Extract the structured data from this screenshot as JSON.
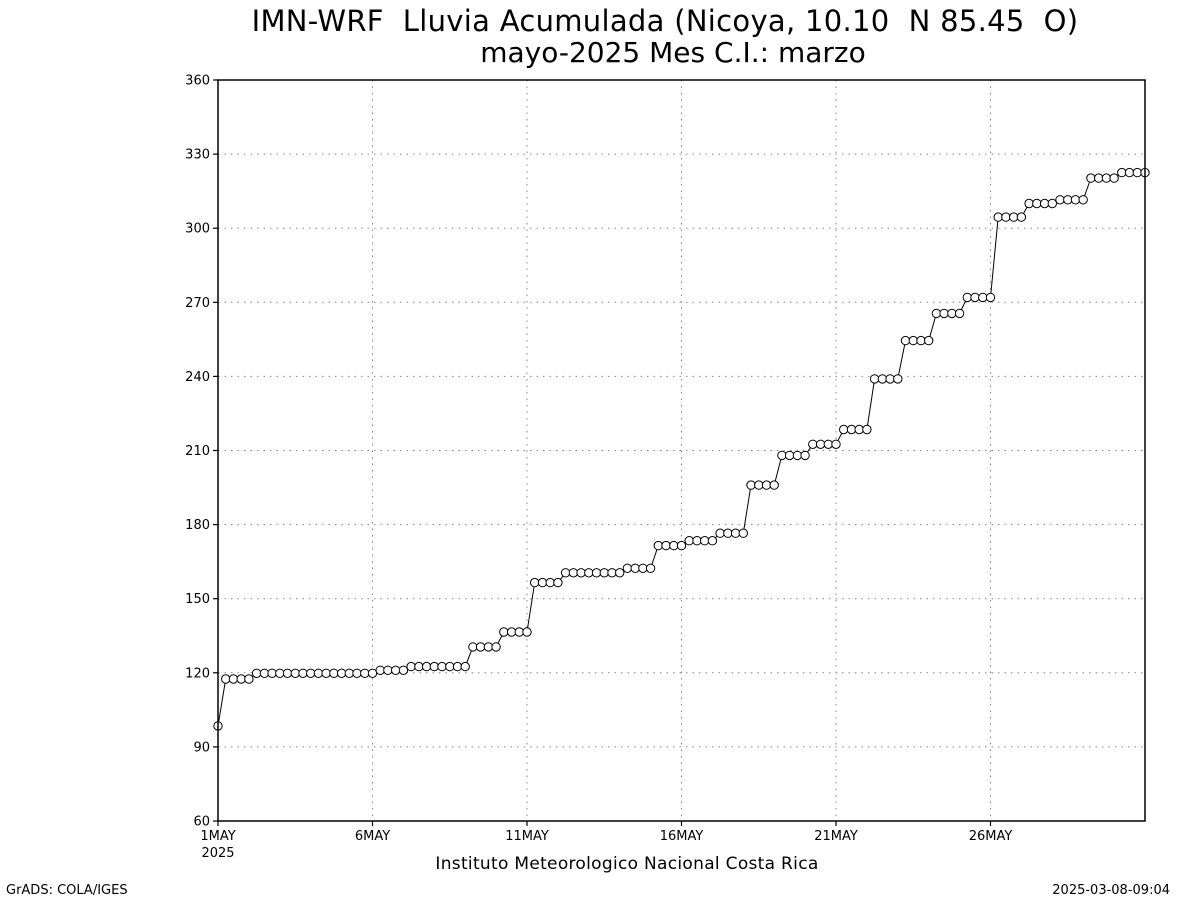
{
  "chart_data": {
    "type": "line",
    "title": "IMN-WRF  Lluvia Acumulada (Nicoya, 10.10  N 85.45  O)",
    "subtitle": "mayo-2025 Mes C.I.: marzo",
    "xlabel": "Instituto Meteorologico Nacional Costa Rica",
    "ylabel": "",
    "ylim": [
      60,
      360
    ],
    "yticks": [
      60,
      90,
      120,
      150,
      180,
      210,
      240,
      270,
      300,
      330,
      360
    ],
    "xlim": [
      "2025-05-01",
      "2025-05-31"
    ],
    "xticks": [
      {
        "date": "2025-05-01",
        "label": "1MAY",
        "sublabel": "2025"
      },
      {
        "date": "2025-05-06",
        "label": "6MAY",
        "sublabel": ""
      },
      {
        "date": "2025-05-11",
        "label": "11MAY",
        "sublabel": ""
      },
      {
        "date": "2025-05-16",
        "label": "16MAY",
        "sublabel": ""
      },
      {
        "date": "2025-05-21",
        "label": "21MAY",
        "sublabel": ""
      },
      {
        "date": "2025-05-26",
        "label": "26MAY",
        "sublabel": ""
      }
    ],
    "grid": true,
    "marker": "open-circle",
    "series": [
      {
        "name": "",
        "x": [
          "2025-05-01 00:00",
          "2025-05-01 06:00",
          "2025-05-01 12:00",
          "2025-05-01 18:00",
          "2025-05-02 00:00",
          "2025-05-02 06:00",
          "2025-05-02 12:00",
          "2025-05-02 18:00",
          "2025-05-03 00:00",
          "2025-05-03 06:00",
          "2025-05-03 12:00",
          "2025-05-03 18:00",
          "2025-05-04 00:00",
          "2025-05-04 06:00",
          "2025-05-04 12:00",
          "2025-05-04 18:00",
          "2025-05-05 00:00",
          "2025-05-05 06:00",
          "2025-05-05 12:00",
          "2025-05-05 18:00",
          "2025-05-06 00:00",
          "2025-05-06 06:00",
          "2025-05-06 12:00",
          "2025-05-06 18:00",
          "2025-05-07 00:00",
          "2025-05-07 06:00",
          "2025-05-07 12:00",
          "2025-05-07 18:00",
          "2025-05-08 00:00",
          "2025-05-08 06:00",
          "2025-05-08 12:00",
          "2025-05-08 18:00",
          "2025-05-09 00:00",
          "2025-05-09 06:00",
          "2025-05-09 12:00",
          "2025-05-09 18:00",
          "2025-05-10 00:00",
          "2025-05-10 06:00",
          "2025-05-10 12:00",
          "2025-05-10 18:00",
          "2025-05-11 00:00",
          "2025-05-11 06:00",
          "2025-05-11 12:00",
          "2025-05-11 18:00",
          "2025-05-12 00:00",
          "2025-05-12 06:00",
          "2025-05-12 12:00",
          "2025-05-12 18:00",
          "2025-05-13 00:00",
          "2025-05-13 06:00",
          "2025-05-13 12:00",
          "2025-05-13 18:00",
          "2025-05-14 00:00",
          "2025-05-14 06:00",
          "2025-05-14 12:00",
          "2025-05-14 18:00",
          "2025-05-15 00:00",
          "2025-05-15 06:00",
          "2025-05-15 12:00",
          "2025-05-15 18:00",
          "2025-05-16 00:00",
          "2025-05-16 06:00",
          "2025-05-16 12:00",
          "2025-05-16 18:00",
          "2025-05-17 00:00",
          "2025-05-17 06:00",
          "2025-05-17 12:00",
          "2025-05-17 18:00",
          "2025-05-18 00:00",
          "2025-05-18 06:00",
          "2025-05-18 12:00",
          "2025-05-18 18:00",
          "2025-05-19 00:00",
          "2025-05-19 06:00",
          "2025-05-19 12:00",
          "2025-05-19 18:00",
          "2025-05-20 00:00",
          "2025-05-20 06:00",
          "2025-05-20 12:00",
          "2025-05-20 18:00",
          "2025-05-21 00:00",
          "2025-05-21 06:00",
          "2025-05-21 12:00",
          "2025-05-21 18:00",
          "2025-05-22 00:00",
          "2025-05-22 06:00",
          "2025-05-22 12:00",
          "2025-05-22 18:00",
          "2025-05-23 00:00",
          "2025-05-23 06:00",
          "2025-05-23 12:00",
          "2025-05-23 18:00",
          "2025-05-24 00:00",
          "2025-05-24 06:00",
          "2025-05-24 12:00",
          "2025-05-24 18:00",
          "2025-05-25 00:00",
          "2025-05-25 06:00",
          "2025-05-25 12:00",
          "2025-05-25 18:00",
          "2025-05-26 00:00",
          "2025-05-26 06:00",
          "2025-05-26 12:00",
          "2025-05-26 18:00",
          "2025-05-27 00:00",
          "2025-05-27 06:00",
          "2025-05-27 12:00",
          "2025-05-27 18:00",
          "2025-05-28 00:00",
          "2025-05-28 06:00",
          "2025-05-28 12:00",
          "2025-05-28 18:00",
          "2025-05-29 00:00",
          "2025-05-29 06:00",
          "2025-05-29 12:00",
          "2025-05-29 18:00",
          "2025-05-30 00:00",
          "2025-05-30 06:00",
          "2025-05-30 12:00",
          "2025-05-30 18:00",
          "2025-05-31 00:00"
        ],
        "values": [
          98.5,
          117.5,
          117.5,
          117.5,
          117.5,
          119.8,
          119.8,
          119.8,
          119.8,
          119.8,
          119.8,
          119.8,
          119.8,
          119.8,
          119.8,
          119.8,
          119.8,
          119.8,
          119.8,
          119.8,
          119.8,
          121,
          121,
          121,
          121,
          122.5,
          122.5,
          122.5,
          122.5,
          122.5,
          122.5,
          122.5,
          122.5,
          130.5,
          130.5,
          130.5,
          130.5,
          136.5,
          136.5,
          136.5,
          136.5,
          156.5,
          156.5,
          156.5,
          156.5,
          160.5,
          160.5,
          160.5,
          160.5,
          160.5,
          160.5,
          160.5,
          160.5,
          162.3,
          162.3,
          162.3,
          162.3,
          171.5,
          171.5,
          171.5,
          171.5,
          173.5,
          173.5,
          173.5,
          173.5,
          176.5,
          176.5,
          176.5,
          176.5,
          196,
          196,
          196,
          196,
          208,
          208,
          208,
          208,
          212.5,
          212.5,
          212.5,
          212.5,
          218.5,
          218.5,
          218.5,
          218.5,
          239,
          239,
          239,
          239,
          254.5,
          254.5,
          254.5,
          254.5,
          265.5,
          265.5,
          265.5,
          265.5,
          272,
          272,
          272,
          272,
          304.5,
          304.5,
          304.5,
          304.5,
          310,
          310,
          310,
          310,
          311.5,
          311.5,
          311.5,
          311.5,
          320.3,
          320.3,
          320.3,
          320.3,
          322.5,
          322.5,
          322.5,
          322.5
        ]
      }
    ]
  },
  "footer": {
    "left": "GrADS: COLA/IGES",
    "right": "2025-03-08-09:04"
  }
}
